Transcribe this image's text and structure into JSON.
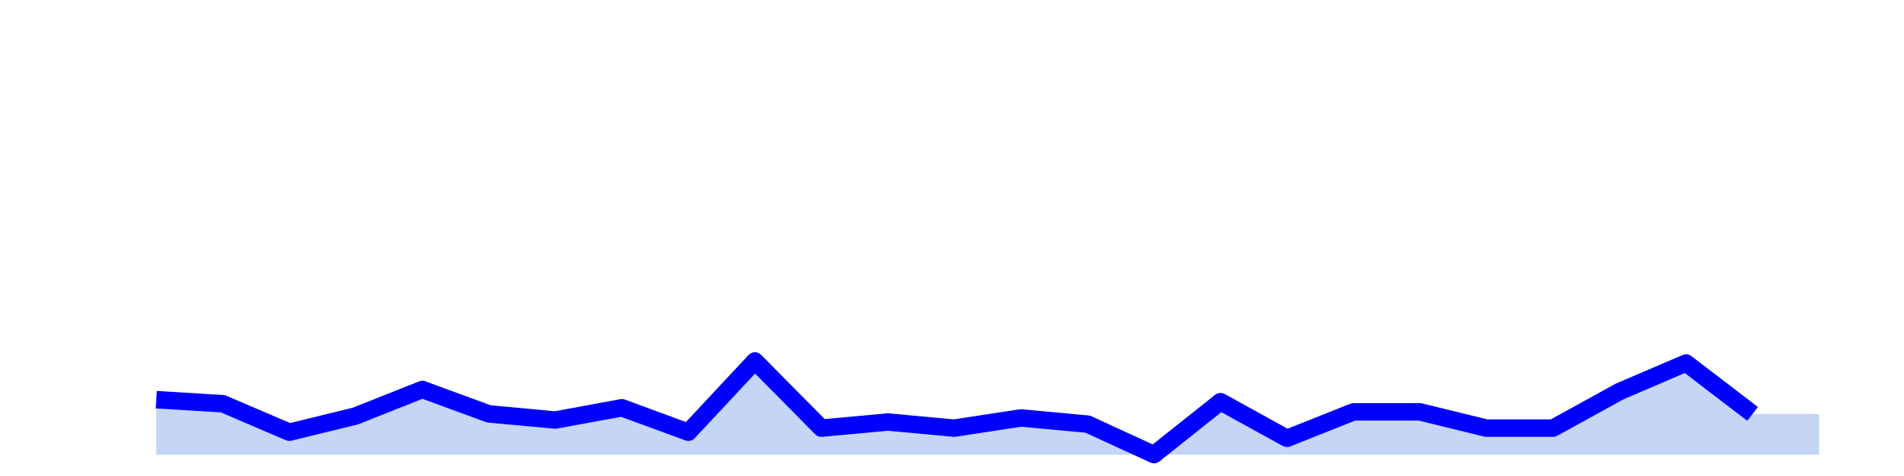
{
  "chart_data": {
    "type": "area",
    "title": "",
    "xlabel": "",
    "ylabel": "",
    "grid": false,
    "legend": "none",
    "x": [
      0,
      1,
      2,
      3,
      4,
      5,
      6,
      7,
      8,
      9,
      10,
      11,
      12,
      13,
      14,
      15,
      16,
      17,
      18,
      19,
      20,
      21,
      22,
      23,
      24,
      25
    ],
    "ylim": [
      0,
      100
    ],
    "series": [
      {
        "values": [
          13.5,
          12.5,
          5.5,
          9.5,
          16,
          10,
          8.5,
          11.5,
          5.5,
          23,
          6.5,
          8,
          6.5,
          9,
          7.5,
          0,
          13,
          4,
          10.5,
          10.5,
          6.5,
          6.5,
          15.5,
          22.5,
          10,
          null
        ],
        "line_color": "#0000ff",
        "fill_color": "#c4d5f5"
      }
    ]
  }
}
